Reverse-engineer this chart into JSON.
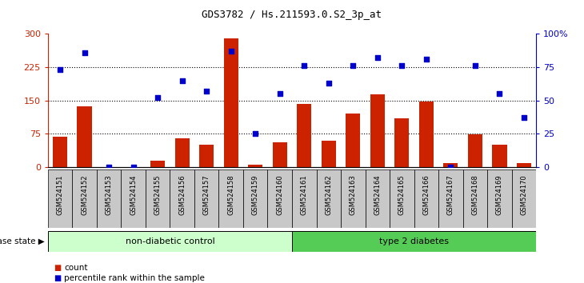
{
  "title": "GDS3782 / Hs.211593.0.S2_3p_at",
  "samples": [
    "GSM524151",
    "GSM524152",
    "GSM524153",
    "GSM524154",
    "GSM524155",
    "GSM524156",
    "GSM524157",
    "GSM524158",
    "GSM524159",
    "GSM524160",
    "GSM524161",
    "GSM524162",
    "GSM524163",
    "GSM524164",
    "GSM524165",
    "GSM524166",
    "GSM524167",
    "GSM524168",
    "GSM524169",
    "GSM524170"
  ],
  "bar_values": [
    68,
    137,
    0,
    0,
    15,
    65,
    50,
    290,
    5,
    55,
    143,
    60,
    120,
    163,
    110,
    147,
    8,
    73,
    50,
    8
  ],
  "dot_pct": [
    73,
    86,
    0,
    0,
    52,
    65,
    57,
    87,
    25,
    55,
    76,
    63,
    76,
    82,
    76,
    81,
    0,
    76,
    55,
    37
  ],
  "groups": [
    {
      "label": "non-diabetic control",
      "start": 0,
      "end": 10,
      "color": "#ccffcc"
    },
    {
      "label": "type 2 diabetes",
      "start": 10,
      "end": 20,
      "color": "#55cc55"
    }
  ],
  "group_label": "disease state",
  "ylim_left": [
    0,
    300
  ],
  "ylim_right": [
    0,
    100
  ],
  "yticks_left": [
    0,
    75,
    150,
    225,
    300
  ],
  "ytick_labels_left": [
    "0",
    "75",
    "150",
    "225",
    "300"
  ],
  "yticks_right": [
    0,
    25,
    50,
    75,
    100
  ],
  "ytick_labels_right": [
    "0",
    "25",
    "50",
    "75",
    "100%"
  ],
  "hgrid_vals": [
    75,
    150,
    225
  ],
  "bar_color": "#cc2200",
  "dot_color": "#0000cc",
  "left_axis_color": "#cc2200",
  "right_axis_color": "#0000cc",
  "tick_col_bg": "#cccccc",
  "legend_items": [
    {
      "label": "count",
      "color": "#cc2200"
    },
    {
      "label": "percentile rank within the sample",
      "color": "#0000cc"
    }
  ]
}
